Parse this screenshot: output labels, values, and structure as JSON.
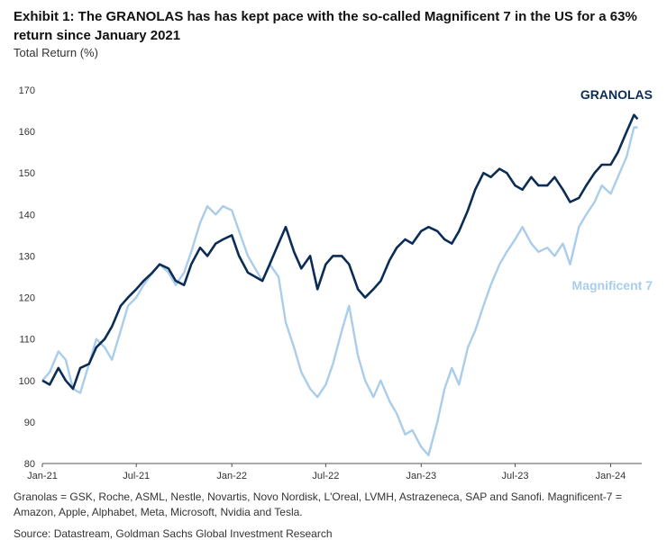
{
  "title": "Exhibit 1: The GRANOLAS has has kept pace with the so-called Magnificent 7 in the US for a 63% return since January 2021",
  "footnote": "Granolas = GSK, Roche, ASML, Nestle, Novartis, Novo Nordisk, L'Oreal, LVMH, Astrazeneca, SAP and Sanofi. Magnificent-7 = Amazon, Apple, Alphabet, Meta, Microsoft, Nvidia and Tesla.",
  "source": "Source: Datastream, Goldman Sachs Global Investment Research",
  "chart_data": {
    "type": "line",
    "title": "Exhibit 1: The GRANOLAS has has kept pace with the so-called Magnificent 7 in the US for a 63% return since January 2021",
    "ylabel": "Total Return (%)",
    "xlabel": "",
    "ylim": [
      80,
      170
    ],
    "yticks": [
      80,
      90,
      100,
      110,
      120,
      130,
      140,
      150,
      160,
      170
    ],
    "xlim": [
      "2021-01",
      "2024-03"
    ],
    "xticks": [
      {
        "date": "2021-01",
        "label": "Jan-21"
      },
      {
        "date": "2021-07",
        "label": "Jul-21"
      },
      {
        "date": "2022-01",
        "label": "Jan-22"
      },
      {
        "date": "2022-07",
        "label": "Jul-22"
      },
      {
        "date": "2023-01",
        "label": "Jan-23"
      },
      {
        "date": "2023-07",
        "label": "Jul-23"
      },
      {
        "date": "2024-01",
        "label": "Jan-24"
      }
    ],
    "grid": false,
    "series": [
      {
        "name": "GRANOLAS",
        "color": "#0b2d55",
        "points": [
          [
            "2021-01-01",
            100
          ],
          [
            "2021-01-15",
            99
          ],
          [
            "2021-02-01",
            103
          ],
          [
            "2021-02-15",
            100
          ],
          [
            "2021-03-01",
            98
          ],
          [
            "2021-03-15",
            103
          ],
          [
            "2021-04-01",
            104
          ],
          [
            "2021-04-15",
            108
          ],
          [
            "2021-05-01",
            110
          ],
          [
            "2021-05-15",
            113
          ],
          [
            "2021-06-01",
            118
          ],
          [
            "2021-06-15",
            120
          ],
          [
            "2021-07-01",
            122
          ],
          [
            "2021-07-15",
            124
          ],
          [
            "2021-08-01",
            126
          ],
          [
            "2021-08-15",
            128
          ],
          [
            "2021-09-01",
            127
          ],
          [
            "2021-09-15",
            124
          ],
          [
            "2021-10-01",
            123
          ],
          [
            "2021-10-15",
            128
          ],
          [
            "2021-11-01",
            132
          ],
          [
            "2021-11-15",
            130
          ],
          [
            "2021-12-01",
            133
          ],
          [
            "2021-12-15",
            134
          ],
          [
            "2022-01-01",
            135
          ],
          [
            "2022-01-15",
            130
          ],
          [
            "2022-02-01",
            126
          ],
          [
            "2022-02-15",
            125
          ],
          [
            "2022-03-01",
            124
          ],
          [
            "2022-03-15",
            128
          ],
          [
            "2022-04-01",
            133
          ],
          [
            "2022-04-15",
            137
          ],
          [
            "2022-05-01",
            131
          ],
          [
            "2022-05-15",
            127
          ],
          [
            "2022-06-01",
            130
          ],
          [
            "2022-06-15",
            122
          ],
          [
            "2022-07-01",
            128
          ],
          [
            "2022-07-15",
            130
          ],
          [
            "2022-08-01",
            130
          ],
          [
            "2022-08-15",
            128
          ],
          [
            "2022-09-01",
            122
          ],
          [
            "2022-09-15",
            120
          ],
          [
            "2022-10-01",
            122
          ],
          [
            "2022-10-15",
            124
          ],
          [
            "2022-11-01",
            129
          ],
          [
            "2022-11-15",
            132
          ],
          [
            "2022-12-01",
            134
          ],
          [
            "2022-12-15",
            133
          ],
          [
            "2023-01-01",
            136
          ],
          [
            "2023-01-15",
            137
          ],
          [
            "2023-02-01",
            136
          ],
          [
            "2023-02-15",
            134
          ],
          [
            "2023-03-01",
            133
          ],
          [
            "2023-03-15",
            136
          ],
          [
            "2023-04-01",
            141
          ],
          [
            "2023-04-15",
            146
          ],
          [
            "2023-05-01",
            150
          ],
          [
            "2023-05-15",
            149
          ],
          [
            "2023-06-01",
            151
          ],
          [
            "2023-06-15",
            150
          ],
          [
            "2023-07-01",
            147
          ],
          [
            "2023-07-15",
            146
          ],
          [
            "2023-08-01",
            149
          ],
          [
            "2023-08-15",
            147
          ],
          [
            "2023-09-01",
            147
          ],
          [
            "2023-09-15",
            149
          ],
          [
            "2023-10-01",
            146
          ],
          [
            "2023-10-15",
            143
          ],
          [
            "2023-11-01",
            144
          ],
          [
            "2023-11-15",
            147
          ],
          [
            "2023-12-01",
            150
          ],
          [
            "2023-12-15",
            152
          ],
          [
            "2024-01-01",
            152
          ],
          [
            "2024-01-15",
            155
          ],
          [
            "2024-02-01",
            160
          ],
          [
            "2024-02-15",
            164
          ],
          [
            "2024-02-22",
            163
          ]
        ]
      },
      {
        "name": "Magnificent 7",
        "color": "#a9cdea",
        "points": [
          [
            "2021-01-01",
            100
          ],
          [
            "2021-01-15",
            102
          ],
          [
            "2021-02-01",
            107
          ],
          [
            "2021-02-15",
            105
          ],
          [
            "2021-03-01",
            98
          ],
          [
            "2021-03-15",
            97
          ],
          [
            "2021-04-01",
            104
          ],
          [
            "2021-04-15",
            110
          ],
          [
            "2021-05-01",
            108
          ],
          [
            "2021-05-15",
            105
          ],
          [
            "2021-06-01",
            112
          ],
          [
            "2021-06-15",
            118
          ],
          [
            "2021-07-01",
            120
          ],
          [
            "2021-07-15",
            123
          ],
          [
            "2021-08-01",
            126
          ],
          [
            "2021-08-15",
            128
          ],
          [
            "2021-09-01",
            126
          ],
          [
            "2021-09-15",
            123
          ],
          [
            "2021-10-01",
            126
          ],
          [
            "2021-10-15",
            131
          ],
          [
            "2021-11-01",
            138
          ],
          [
            "2021-11-15",
            142
          ],
          [
            "2021-12-01",
            140
          ],
          [
            "2021-12-15",
            142
          ],
          [
            "2022-01-01",
            141
          ],
          [
            "2022-01-15",
            136
          ],
          [
            "2022-02-01",
            130
          ],
          [
            "2022-02-15",
            127
          ],
          [
            "2022-03-01",
            124
          ],
          [
            "2022-03-15",
            128
          ],
          [
            "2022-04-01",
            125
          ],
          [
            "2022-04-15",
            114
          ],
          [
            "2022-05-01",
            108
          ],
          [
            "2022-05-15",
            102
          ],
          [
            "2022-06-01",
            98
          ],
          [
            "2022-06-15",
            96
          ],
          [
            "2022-07-01",
            99
          ],
          [
            "2022-07-15",
            104
          ],
          [
            "2022-08-01",
            112
          ],
          [
            "2022-08-15",
            118
          ],
          [
            "2022-09-01",
            106
          ],
          [
            "2022-09-15",
            100
          ],
          [
            "2022-10-01",
            96
          ],
          [
            "2022-10-15",
            100
          ],
          [
            "2022-11-01",
            95
          ],
          [
            "2022-11-15",
            92
          ],
          [
            "2022-12-01",
            87
          ],
          [
            "2022-12-15",
            88
          ],
          [
            "2023-01-01",
            84
          ],
          [
            "2023-01-15",
            82
          ],
          [
            "2023-02-01",
            90
          ],
          [
            "2023-02-15",
            98
          ],
          [
            "2023-03-01",
            103
          ],
          [
            "2023-03-15",
            99
          ],
          [
            "2023-04-01",
            108
          ],
          [
            "2023-04-15",
            112
          ],
          [
            "2023-05-01",
            118
          ],
          [
            "2023-05-15",
            123
          ],
          [
            "2023-06-01",
            128
          ],
          [
            "2023-06-15",
            131
          ],
          [
            "2023-07-01",
            134
          ],
          [
            "2023-07-15",
            137
          ],
          [
            "2023-08-01",
            133
          ],
          [
            "2023-08-15",
            131
          ],
          [
            "2023-09-01",
            132
          ],
          [
            "2023-09-15",
            130
          ],
          [
            "2023-10-01",
            133
          ],
          [
            "2023-10-15",
            128
          ],
          [
            "2023-11-01",
            137
          ],
          [
            "2023-11-15",
            140
          ],
          [
            "2023-12-01",
            143
          ],
          [
            "2023-12-15",
            147
          ],
          [
            "2024-01-01",
            145
          ],
          [
            "2024-01-15",
            149
          ],
          [
            "2024-02-01",
            154
          ],
          [
            "2024-02-15",
            161
          ],
          [
            "2024-02-22",
            161
          ]
        ]
      }
    ]
  }
}
